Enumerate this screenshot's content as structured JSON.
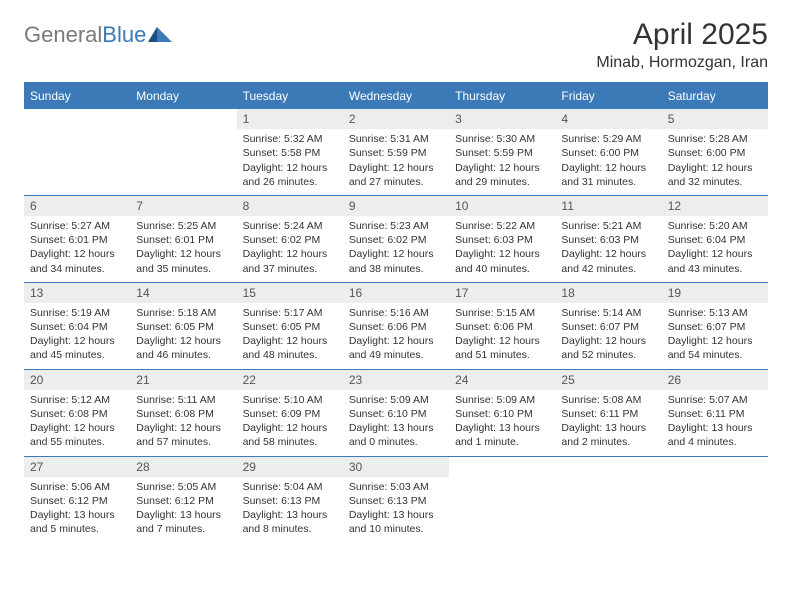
{
  "logo": {
    "general": "General",
    "blue": "Blue"
  },
  "title": "April 2025",
  "location": "Minab, Hormozgan, Iran",
  "colors": {
    "header_bg": "#3b79b7",
    "header_text": "#ffffff",
    "daynum_bg": "#eceded",
    "text": "#333333",
    "logo_gray": "#7a7a7a",
    "logo_blue": "#3b79b7",
    "page_bg": "#ffffff"
  },
  "day_headers": [
    "Sunday",
    "Monday",
    "Tuesday",
    "Wednesday",
    "Thursday",
    "Friday",
    "Saturday"
  ],
  "weeks": [
    [
      null,
      null,
      {
        "n": "1",
        "sr": "Sunrise: 5:32 AM",
        "ss": "Sunset: 5:58 PM",
        "dl": "Daylight: 12 hours and 26 minutes."
      },
      {
        "n": "2",
        "sr": "Sunrise: 5:31 AM",
        "ss": "Sunset: 5:59 PM",
        "dl": "Daylight: 12 hours and 27 minutes."
      },
      {
        "n": "3",
        "sr": "Sunrise: 5:30 AM",
        "ss": "Sunset: 5:59 PM",
        "dl": "Daylight: 12 hours and 29 minutes."
      },
      {
        "n": "4",
        "sr": "Sunrise: 5:29 AM",
        "ss": "Sunset: 6:00 PM",
        "dl": "Daylight: 12 hours and 31 minutes."
      },
      {
        "n": "5",
        "sr": "Sunrise: 5:28 AM",
        "ss": "Sunset: 6:00 PM",
        "dl": "Daylight: 12 hours and 32 minutes."
      }
    ],
    [
      {
        "n": "6",
        "sr": "Sunrise: 5:27 AM",
        "ss": "Sunset: 6:01 PM",
        "dl": "Daylight: 12 hours and 34 minutes."
      },
      {
        "n": "7",
        "sr": "Sunrise: 5:25 AM",
        "ss": "Sunset: 6:01 PM",
        "dl": "Daylight: 12 hours and 35 minutes."
      },
      {
        "n": "8",
        "sr": "Sunrise: 5:24 AM",
        "ss": "Sunset: 6:02 PM",
        "dl": "Daylight: 12 hours and 37 minutes."
      },
      {
        "n": "9",
        "sr": "Sunrise: 5:23 AM",
        "ss": "Sunset: 6:02 PM",
        "dl": "Daylight: 12 hours and 38 minutes."
      },
      {
        "n": "10",
        "sr": "Sunrise: 5:22 AM",
        "ss": "Sunset: 6:03 PM",
        "dl": "Daylight: 12 hours and 40 minutes."
      },
      {
        "n": "11",
        "sr": "Sunrise: 5:21 AM",
        "ss": "Sunset: 6:03 PM",
        "dl": "Daylight: 12 hours and 42 minutes."
      },
      {
        "n": "12",
        "sr": "Sunrise: 5:20 AM",
        "ss": "Sunset: 6:04 PM",
        "dl": "Daylight: 12 hours and 43 minutes."
      }
    ],
    [
      {
        "n": "13",
        "sr": "Sunrise: 5:19 AM",
        "ss": "Sunset: 6:04 PM",
        "dl": "Daylight: 12 hours and 45 minutes."
      },
      {
        "n": "14",
        "sr": "Sunrise: 5:18 AM",
        "ss": "Sunset: 6:05 PM",
        "dl": "Daylight: 12 hours and 46 minutes."
      },
      {
        "n": "15",
        "sr": "Sunrise: 5:17 AM",
        "ss": "Sunset: 6:05 PM",
        "dl": "Daylight: 12 hours and 48 minutes."
      },
      {
        "n": "16",
        "sr": "Sunrise: 5:16 AM",
        "ss": "Sunset: 6:06 PM",
        "dl": "Daylight: 12 hours and 49 minutes."
      },
      {
        "n": "17",
        "sr": "Sunrise: 5:15 AM",
        "ss": "Sunset: 6:06 PM",
        "dl": "Daylight: 12 hours and 51 minutes."
      },
      {
        "n": "18",
        "sr": "Sunrise: 5:14 AM",
        "ss": "Sunset: 6:07 PM",
        "dl": "Daylight: 12 hours and 52 minutes."
      },
      {
        "n": "19",
        "sr": "Sunrise: 5:13 AM",
        "ss": "Sunset: 6:07 PM",
        "dl": "Daylight: 12 hours and 54 minutes."
      }
    ],
    [
      {
        "n": "20",
        "sr": "Sunrise: 5:12 AM",
        "ss": "Sunset: 6:08 PM",
        "dl": "Daylight: 12 hours and 55 minutes."
      },
      {
        "n": "21",
        "sr": "Sunrise: 5:11 AM",
        "ss": "Sunset: 6:08 PM",
        "dl": "Daylight: 12 hours and 57 minutes."
      },
      {
        "n": "22",
        "sr": "Sunrise: 5:10 AM",
        "ss": "Sunset: 6:09 PM",
        "dl": "Daylight: 12 hours and 58 minutes."
      },
      {
        "n": "23",
        "sr": "Sunrise: 5:09 AM",
        "ss": "Sunset: 6:10 PM",
        "dl": "Daylight: 13 hours and 0 minutes."
      },
      {
        "n": "24",
        "sr": "Sunrise: 5:09 AM",
        "ss": "Sunset: 6:10 PM",
        "dl": "Daylight: 13 hours and 1 minute."
      },
      {
        "n": "25",
        "sr": "Sunrise: 5:08 AM",
        "ss": "Sunset: 6:11 PM",
        "dl": "Daylight: 13 hours and 2 minutes."
      },
      {
        "n": "26",
        "sr": "Sunrise: 5:07 AM",
        "ss": "Sunset: 6:11 PM",
        "dl": "Daylight: 13 hours and 4 minutes."
      }
    ],
    [
      {
        "n": "27",
        "sr": "Sunrise: 5:06 AM",
        "ss": "Sunset: 6:12 PM",
        "dl": "Daylight: 13 hours and 5 minutes."
      },
      {
        "n": "28",
        "sr": "Sunrise: 5:05 AM",
        "ss": "Sunset: 6:12 PM",
        "dl": "Daylight: 13 hours and 7 minutes."
      },
      {
        "n": "29",
        "sr": "Sunrise: 5:04 AM",
        "ss": "Sunset: 6:13 PM",
        "dl": "Daylight: 13 hours and 8 minutes."
      },
      {
        "n": "30",
        "sr": "Sunrise: 5:03 AM",
        "ss": "Sunset: 6:13 PM",
        "dl": "Daylight: 13 hours and 10 minutes."
      },
      null,
      null,
      null
    ]
  ]
}
